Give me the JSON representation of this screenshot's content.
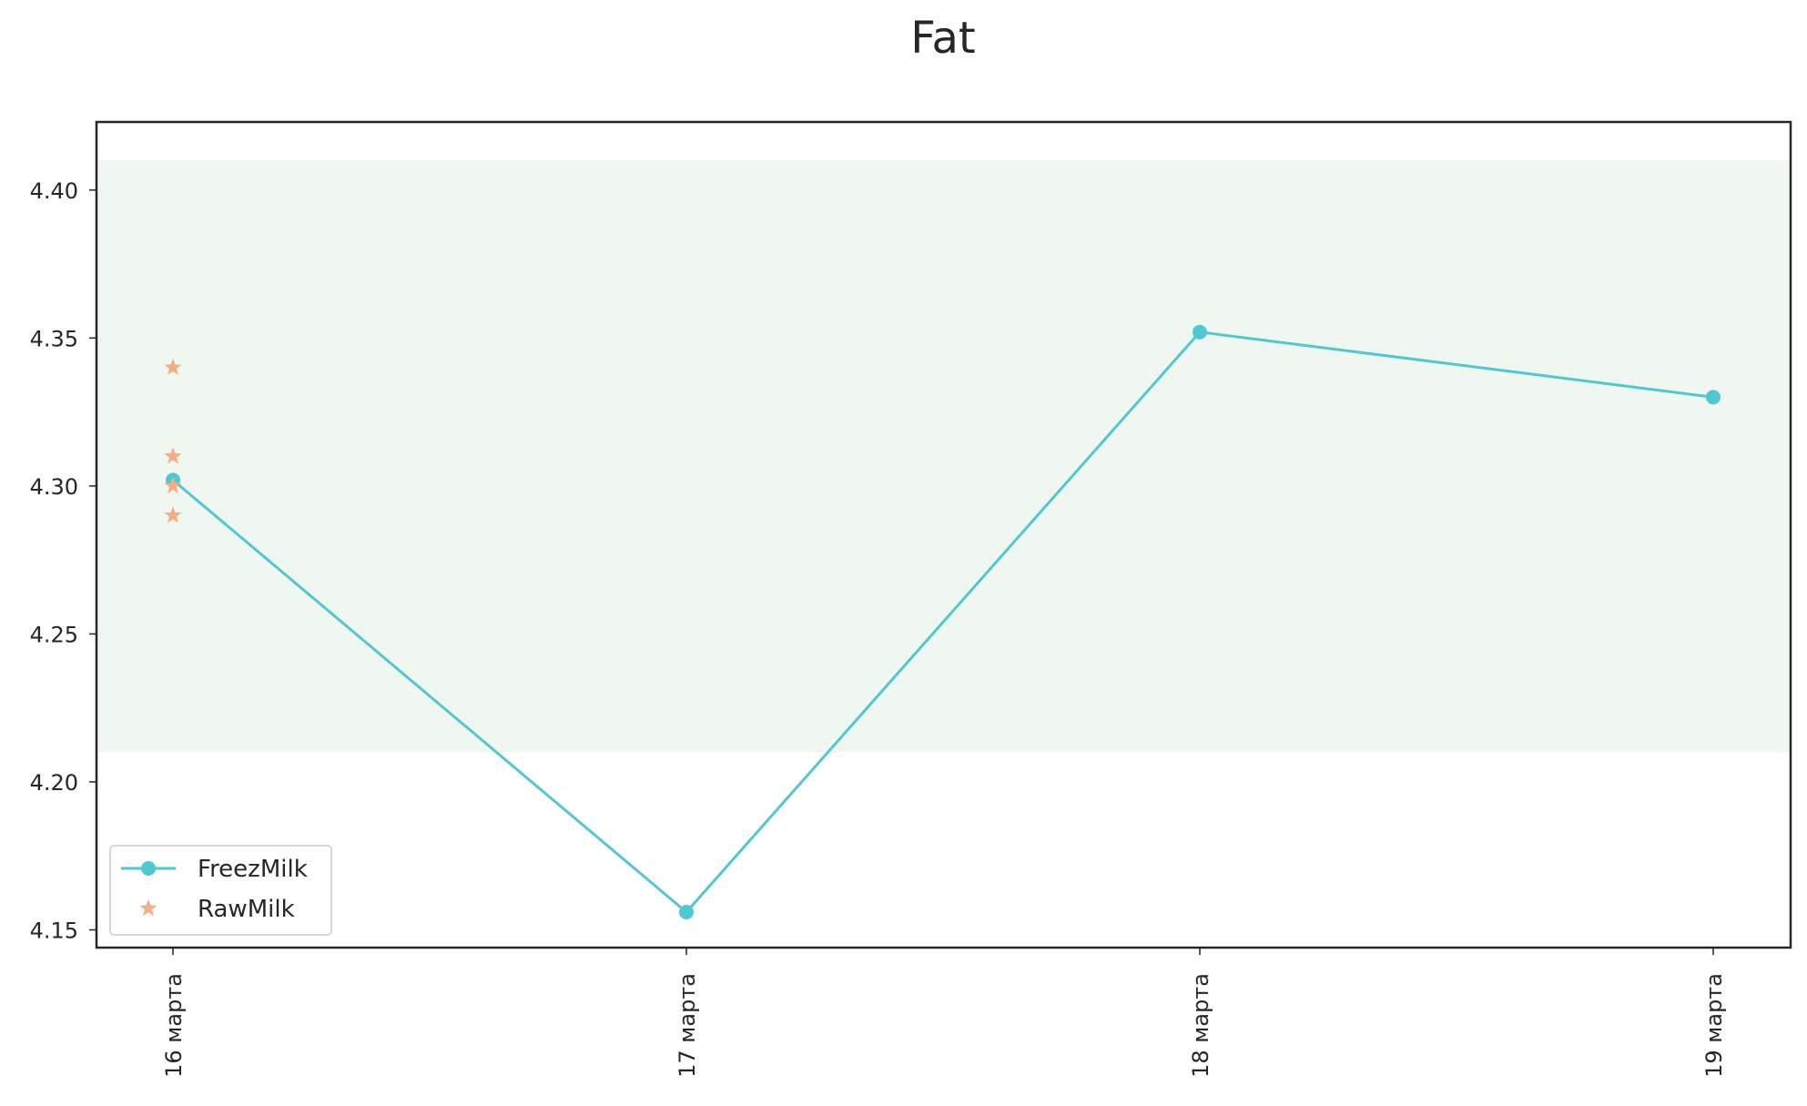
{
  "chart_data": {
    "type": "line",
    "title": "Fat",
    "xlabel": "",
    "ylabel": "",
    "categories": [
      "16 марта",
      "17 марта",
      "18 марта",
      "19 марта"
    ],
    "yticks": [
      "4.15",
      "4.20",
      "4.25",
      "4.30",
      "4.35",
      "4.40"
    ],
    "ylim": [
      4.144,
      4.423
    ],
    "band": {
      "low": 4.21,
      "high": 4.41,
      "color": "#f0f7f1"
    },
    "grid": false,
    "legend_position": "bottom-left",
    "series": [
      {
        "name": "FreezMilk",
        "kind": "line",
        "marker": "circle",
        "color": "#4fc9d1",
        "points": [
          {
            "x": "16 марта",
            "y": 4.302
          },
          {
            "x": "17 марта",
            "y": 4.156
          },
          {
            "x": "18 марта",
            "y": 4.352
          },
          {
            "x": "19 марта",
            "y": 4.33
          }
        ]
      },
      {
        "name": "RawMilk",
        "kind": "scatter",
        "marker": "star",
        "color": "#f4ad84",
        "points": [
          {
            "x": "16 марта",
            "y": 4.34
          },
          {
            "x": "16 марта",
            "y": 4.31
          },
          {
            "x": "16 марта",
            "y": 4.3
          },
          {
            "x": "16 марта",
            "y": 4.29
          }
        ]
      }
    ]
  }
}
